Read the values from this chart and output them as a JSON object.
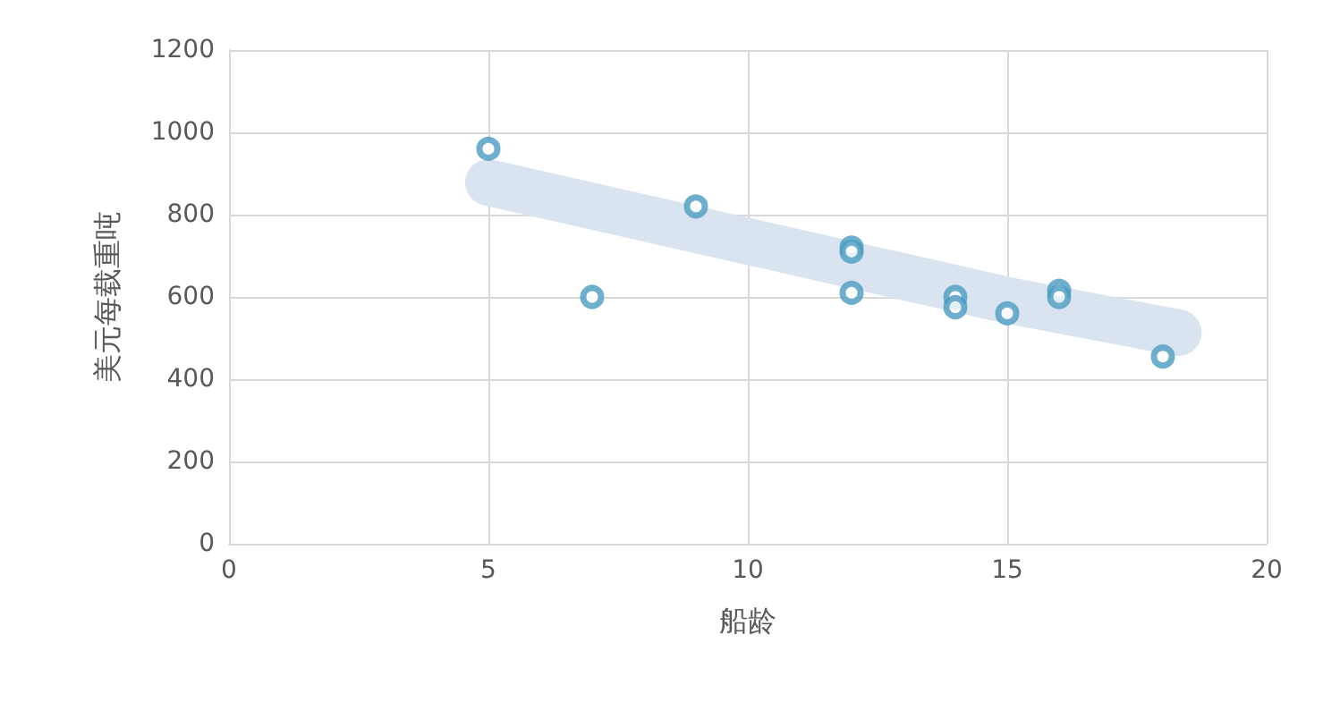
{
  "chart_data": {
    "type": "scatter",
    "xlabel": "船龄",
    "ylabel": "美元每载重吨",
    "xlim": [
      0,
      20
    ],
    "xticks": [
      0,
      5,
      10,
      15,
      20
    ],
    "ylim": [
      0,
      1200
    ],
    "yticks": [
      0,
      200,
      400,
      600,
      800,
      1000,
      1200
    ],
    "grid": true,
    "series": [
      {
        "type": "line",
        "marker": "none",
        "color": "#dae3f0",
        "x": [
          5,
          10,
          15,
          18.3
        ],
        "values": [
          878,
          735,
          592,
          513
        ]
      },
      {
        "marker": "circle",
        "color": "#4a9bc1",
        "x": [
          5,
          7,
          9,
          12,
          12,
          12,
          14,
          14,
          15,
          16,
          16,
          18
        ],
        "values": [
          960,
          600,
          820,
          720,
          710,
          610,
          600,
          575,
          560,
          615,
          600,
          455
        ]
      }
    ]
  }
}
